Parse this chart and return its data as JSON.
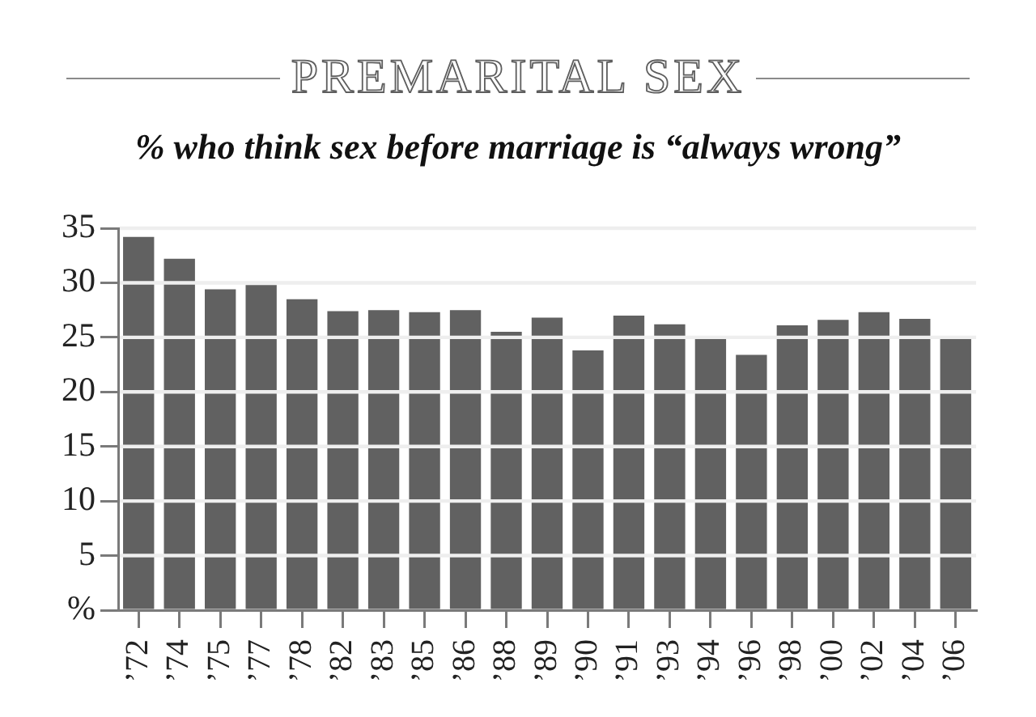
{
  "chart_data": {
    "type": "bar",
    "title": "PREMARITAL SEX",
    "subtitle": "% who think sex before marriage is “always wrong”",
    "categories": [
      "’72",
      "’74",
      "’75",
      "’77",
      "’78",
      "’82",
      "’83",
      "’85",
      "’86",
      "’88",
      "’89",
      "’90",
      "’91",
      "’93",
      "’94",
      "’96",
      "’98",
      "’00",
      "’02",
      "’04",
      "’06"
    ],
    "values": [
      34.2,
      32.2,
      29.4,
      29.8,
      28.5,
      27.4,
      27.5,
      27.3,
      27.5,
      25.5,
      26.8,
      23.8,
      27.0,
      26.2,
      24.9,
      23.4,
      26.1,
      26.6,
      27.3,
      26.7,
      24.9
    ],
    "color": "#616161",
    "ylim": [
      0,
      35
    ],
    "yticks": [
      {
        "value": 0,
        "label": "%"
      },
      5,
      10,
      15,
      20,
      25,
      30,
      35
    ],
    "grid": "y"
  }
}
